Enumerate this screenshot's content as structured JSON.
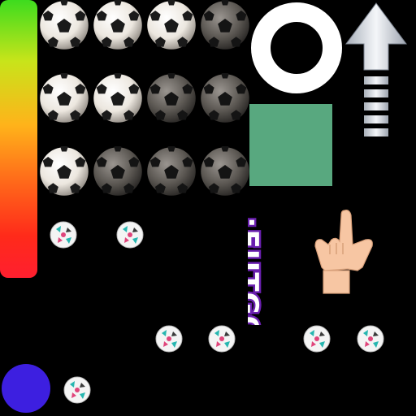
{
  "sprite_sheet": {
    "power_bar": {
      "gradient_colors": [
        "#3ddc1e",
        "#c8e41a",
        "#ffb31a",
        "#ff6a1a",
        "#ff2a1a",
        "#ff1f2f"
      ]
    },
    "balls": [
      {
        "shade": "light"
      },
      {
        "shade": "light"
      },
      {
        "shade": "light"
      },
      {
        "shade": "dark"
      },
      {
        "shade": "light"
      },
      {
        "shade": "light"
      },
      {
        "shade": "dark"
      },
      {
        "shade": "dark"
      },
      {
        "shade": "light"
      },
      {
        "shade": "dark"
      },
      {
        "shade": "dark"
      },
      {
        "shade": "dark"
      }
    ],
    "mini_balls_count": 7,
    "ring_color": "#ffffff",
    "arrow_color": "#c8cdd6",
    "target_square_color": "#58a87f",
    "logo_text": "¡FUTGOL!",
    "logo_color": "#6a1fb0",
    "hand_icon": "pointing-hand-icon",
    "skin_color": "#f7c6a3",
    "blue_dot_color": "#3d1fe0"
  }
}
